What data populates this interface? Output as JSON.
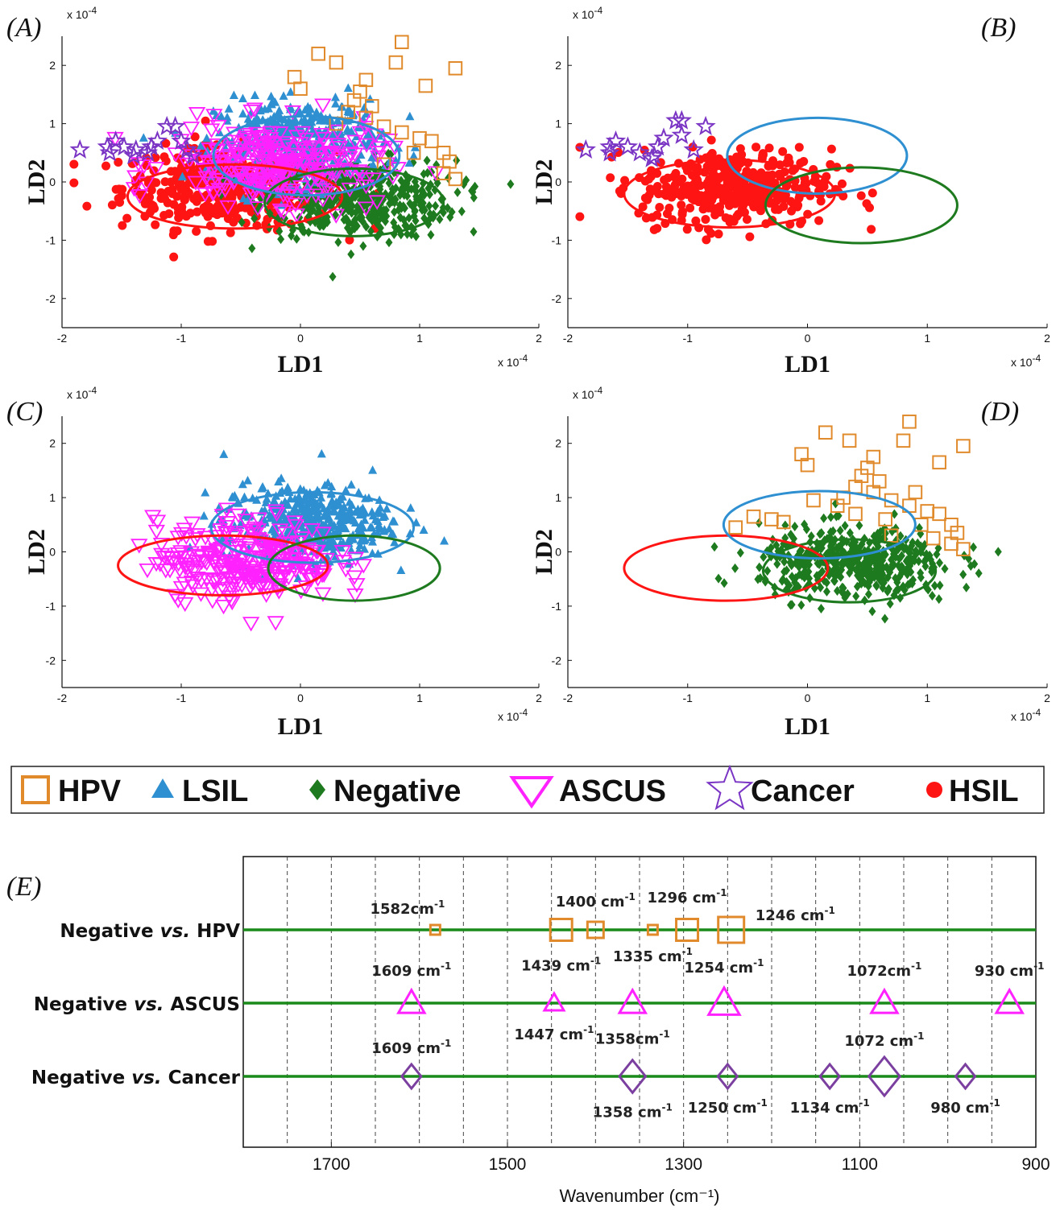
{
  "figure": {
    "colors": {
      "HPV": "#e08a2c",
      "LSIL": "#2e8fd1",
      "Negative": "#1e7a1e",
      "ASCUS": "#ff22ff",
      "Cancer": "#7b35c4",
      "HSIL": "#ff1414",
      "CancerDiamond": "#7b3fa0",
      "ELine": "#1a8a1a"
    },
    "legend": [
      {
        "label": "HPV",
        "marker": "square-open",
        "color_key": "HPV"
      },
      {
        "label": "LSIL",
        "marker": "triangle-filled",
        "color_key": "LSIL"
      },
      {
        "label": "Negative",
        "marker": "diamond-filled",
        "color_key": "Negative"
      },
      {
        "label": "ASCUS",
        "marker": "triangle-down-open",
        "color_key": "ASCUS"
      },
      {
        "label": "Cancer",
        "marker": "star-open",
        "color_key": "Cancer"
      },
      {
        "label": "HSIL",
        "marker": "circle-filled",
        "color_key": "HSIL"
      }
    ]
  },
  "chart_data": [
    {
      "type": "scatter",
      "panel": "(A)",
      "xlabel": "LD1",
      "ylabel": "LD2",
      "x_scale_label": "x 10",
      "x_scale_exp": "-4",
      "y_scale_label": "x 10",
      "y_scale_exp": "-4",
      "xlim": [
        -2,
        2
      ],
      "ylim": [
        -2.5,
        2.5
      ],
      "xticks": [
        "-2",
        "-1",
        "0",
        "1",
        "2"
      ],
      "yticks": [
        "-2",
        "-1",
        "0",
        "1",
        "2"
      ],
      "series": [
        {
          "name": "HSIL",
          "center": [
            -0.6,
            -0.1
          ],
          "spread": [
            0.45,
            0.35
          ],
          "count": 420,
          "ellipse": {
            "cx": -0.55,
            "cy": -0.25,
            "rx": 0.9,
            "ry": 0.55
          }
        },
        {
          "name": "Negative",
          "center": [
            0.5,
            -0.3
          ],
          "spread": [
            0.4,
            0.33
          ],
          "count": 430,
          "ellipse": {
            "cx": 0.45,
            "cy": -0.35,
            "rx": 0.75,
            "ry": 0.58
          }
        },
        {
          "name": "LSIL",
          "center": [
            0.0,
            0.7
          ],
          "spread": [
            0.35,
            0.35
          ],
          "count": 380,
          "ellipse": {
            "cx": 0.05,
            "cy": 0.45,
            "rx": 0.78,
            "ry": 0.68
          }
        },
        {
          "name": "ASCUS",
          "center": [
            -0.2,
            0.3
          ],
          "spread": [
            0.45,
            0.35
          ],
          "count": 260,
          "ellipse": null
        },
        {
          "name": "Cancer",
          "points": [
            [
              -1.85,
              0.55
            ],
            [
              -1.62,
              0.6
            ],
            [
              -1.55,
              0.7
            ],
            [
              -1.48,
              0.6
            ],
            [
              -1.38,
              0.55
            ],
            [
              -1.28,
              0.5
            ],
            [
              -1.25,
              0.6
            ],
            [
              -1.2,
              0.7
            ],
            [
              -1.12,
              0.95
            ],
            [
              -1.05,
              0.95
            ],
            [
              -1.0,
              0.7
            ],
            [
              -0.95,
              0.55
            ],
            [
              -0.9,
              0.45
            ],
            [
              -1.6,
              0.5
            ],
            [
              -1.4,
              0.45
            ]
          ],
          "ellipse": null
        },
        {
          "name": "HPV",
          "points": [
            [
              0.85,
              2.4
            ],
            [
              0.15,
              2.2
            ],
            [
              0.3,
              2.05
            ],
            [
              0.8,
              2.05
            ],
            [
              1.3,
              1.95
            ],
            [
              -0.05,
              1.8
            ],
            [
              0.55,
              1.75
            ],
            [
              1.05,
              1.65
            ],
            [
              0.0,
              1.6
            ],
            [
              0.5,
              1.55
            ],
            [
              0.45,
              1.4
            ],
            [
              0.6,
              1.3
            ],
            [
              0.4,
              1.2
            ],
            [
              0.55,
              1.1
            ],
            [
              0.7,
              0.95
            ],
            [
              0.85,
              0.85
            ],
            [
              1.0,
              0.75
            ],
            [
              1.1,
              0.7
            ],
            [
              0.95,
              0.5
            ],
            [
              1.2,
              0.5
            ],
            [
              1.25,
              0.35
            ],
            [
              1.2,
              0.15
            ],
            [
              1.3,
              0.05
            ],
            [
              0.7,
              0.3
            ],
            [
              0.3,
              1.0
            ]
          ],
          "ellipse": null
        }
      ]
    },
    {
      "type": "scatter",
      "panel": "(B)",
      "xlabel": "LD1",
      "ylabel": "LD2",
      "x_scale_label": "x 10",
      "x_scale_exp": "-4",
      "y_scale_label": "x 10",
      "y_scale_exp": "-4",
      "xlim": [
        -2,
        2
      ],
      "ylim": [
        -2.5,
        2.5
      ],
      "xticks": [
        "-2",
        "-1",
        "0",
        "1",
        "2"
      ],
      "yticks": [
        "-2",
        "-1",
        "0",
        "1",
        "2"
      ],
      "series": [
        {
          "name": "HSIL",
          "center": [
            -0.6,
            -0.1
          ],
          "spread": [
            0.4,
            0.33
          ],
          "count": 400,
          "ellipse": {
            "cx": -0.65,
            "cy": -0.2,
            "rx": 0.88,
            "ry": 0.58
          }
        },
        {
          "name": "LSIL",
          "center": null,
          "count": 0,
          "ellipse": {
            "cx": 0.08,
            "cy": 0.45,
            "rx": 0.75,
            "ry": 0.65
          }
        },
        {
          "name": "Negative",
          "center": null,
          "count": 0,
          "ellipse": {
            "cx": 0.45,
            "cy": -0.4,
            "rx": 0.8,
            "ry": 0.65
          }
        },
        {
          "name": "Cancer",
          "points": [
            [
              -1.85,
              0.55
            ],
            [
              -1.65,
              0.6
            ],
            [
              -1.6,
              0.7
            ],
            [
              -1.5,
              0.6
            ],
            [
              -1.4,
              0.5
            ],
            [
              -1.28,
              0.45
            ],
            [
              -1.25,
              0.6
            ],
            [
              -1.2,
              0.75
            ],
            [
              -1.1,
              1.05
            ],
            [
              -1.05,
              1.05
            ],
            [
              -1.05,
              0.8
            ],
            [
              -0.95,
              0.55
            ],
            [
              -0.85,
              0.95
            ],
            [
              -1.65,
              0.5
            ],
            [
              -1.3,
              0.4
            ]
          ],
          "ellipse": null
        }
      ]
    },
    {
      "type": "scatter",
      "panel": "(C)",
      "xlabel": "LD1",
      "ylabel": "LD2",
      "x_scale_label": "x 10",
      "x_scale_exp": "-4",
      "y_scale_label": "x 10",
      "y_scale_exp": "-4",
      "xlim": [
        -2,
        2
      ],
      "ylim": [
        -2.5,
        2.5
      ],
      "xticks": [
        "-2",
        "-1",
        "0",
        "1",
        "2"
      ],
      "yticks": [
        "-2",
        "-1",
        "0",
        "1",
        "2"
      ],
      "series": [
        {
          "name": "ASCUS",
          "center": [
            -0.45,
            -0.15
          ],
          "spread": [
            0.38,
            0.38
          ],
          "count": 260,
          "ellipse": null
        },
        {
          "name": "LSIL",
          "center": [
            0.05,
            0.55
          ],
          "spread": [
            0.35,
            0.35
          ],
          "count": 420,
          "ellipse": {
            "cx": 0.1,
            "cy": 0.45,
            "rx": 0.85,
            "ry": 0.65
          }
        },
        {
          "name": "HSIL",
          "center": null,
          "count": 0,
          "ellipse": {
            "cx": -0.65,
            "cy": -0.25,
            "rx": 0.88,
            "ry": 0.55
          }
        },
        {
          "name": "Negative",
          "center": null,
          "count": 0,
          "ellipse": {
            "cx": 0.45,
            "cy": -0.3,
            "rx": 0.72,
            "ry": 0.6
          }
        }
      ]
    },
    {
      "type": "scatter",
      "panel": "(D)",
      "xlabel": "LD1",
      "ylabel": "LD2",
      "x_scale_label": "x 10",
      "x_scale_exp": "-4",
      "y_scale_label": "x 10",
      "y_scale_exp": "-4",
      "xlim": [
        -2,
        2
      ],
      "ylim": [
        -2.5,
        2.5
      ],
      "xticks": [
        "-2",
        "-1",
        "0",
        "1",
        "2"
      ],
      "yticks": [
        "-2",
        "-1",
        "0",
        "1",
        "2"
      ],
      "series": [
        {
          "name": "Negative",
          "center": [
            0.4,
            -0.2
          ],
          "spread": [
            0.4,
            0.33
          ],
          "count": 460,
          "ellipse": {
            "cx": 0.35,
            "cy": -0.35,
            "rx": 0.72,
            "ry": 0.58
          }
        },
        {
          "name": "HSIL",
          "center": null,
          "count": 0,
          "ellipse": {
            "cx": -0.68,
            "cy": -0.3,
            "rx": 0.85,
            "ry": 0.6
          }
        },
        {
          "name": "LSIL",
          "center": null,
          "count": 0,
          "ellipse": {
            "cx": 0.1,
            "cy": 0.5,
            "rx": 0.8,
            "ry": 0.62
          }
        },
        {
          "name": "HPV",
          "points": [
            [
              0.85,
              2.4
            ],
            [
              0.15,
              2.2
            ],
            [
              0.35,
              2.05
            ],
            [
              0.8,
              2.05
            ],
            [
              1.3,
              1.95
            ],
            [
              -0.05,
              1.8
            ],
            [
              0.55,
              1.75
            ],
            [
              1.1,
              1.65
            ],
            [
              0.0,
              1.6
            ],
            [
              0.5,
              1.55
            ],
            [
              0.45,
              1.4
            ],
            [
              0.6,
              1.3
            ],
            [
              0.4,
              1.2
            ],
            [
              0.55,
              1.1
            ],
            [
              0.7,
              0.95
            ],
            [
              0.85,
              0.85
            ],
            [
              1.0,
              0.75
            ],
            [
              1.1,
              0.7
            ],
            [
              0.95,
              0.5
            ],
            [
              1.2,
              0.5
            ],
            [
              1.25,
              0.35
            ],
            [
              1.2,
              0.15
            ],
            [
              1.3,
              0.05
            ],
            [
              0.7,
              0.3
            ],
            [
              0.3,
              1.0
            ],
            [
              0.05,
              0.95
            ],
            [
              -0.3,
              0.6
            ],
            [
              -0.6,
              0.45
            ],
            [
              -0.45,
              0.65
            ],
            [
              0.25,
              0.85
            ],
            [
              0.65,
              0.6
            ],
            [
              0.4,
              0.7
            ],
            [
              1.05,
              0.25
            ],
            [
              -0.2,
              0.55
            ],
            [
              0.9,
              1.1
            ]
          ],
          "ellipse": null
        }
      ]
    },
    {
      "type": "scatter",
      "panel": "(E)",
      "xlabel": "Wavenumber (cm⁻¹)",
      "xlim": [
        1800,
        900
      ],
      "x_reversed": true,
      "xticks": [
        "1700",
        "1500",
        "1300",
        "1100",
        "900"
      ],
      "grid": "vertical dashed every 50",
      "rows": [
        {
          "label_pre": "Negative ",
          "label_vs": "vs.",
          "label_post": " HPV",
          "marker": "square-open",
          "color_key": "HPV",
          "points": [
            {
              "x": 1582,
              "size": "small",
              "label": "1582cm-1",
              "label_pos": "above-left"
            },
            {
              "x": 1439,
              "size": "large",
              "label": "1439 cm-1",
              "label_pos": "below"
            },
            {
              "x": 1400,
              "size": "medium",
              "label": "1400 cm-1",
              "label_pos": "above"
            },
            {
              "x": 1335,
              "size": "small",
              "label": "1335 cm-1",
              "label_pos": "below"
            },
            {
              "x": 1296,
              "size": "large",
              "label": "1296 cm-1",
              "label_pos": "above"
            },
            {
              "x": 1246,
              "size": "xlarge",
              "label": "1246 cm-1",
              "label_pos": "above-right"
            }
          ]
        },
        {
          "label_pre": "Negative ",
          "label_vs": "vs.",
          "label_post": " ASCUS",
          "marker": "triangle-open",
          "color_key": "ASCUS",
          "points": [
            {
              "x": 1609,
              "size": "large",
              "label": "1609 cm-1",
              "label_pos": "above"
            },
            {
              "x": 1447,
              "size": "medium",
              "label": "1447 cm-1",
              "label_pos": "below"
            },
            {
              "x": 1358,
              "size": "large",
              "label": "1358cm-1",
              "label_pos": "below"
            },
            {
              "x": 1254,
              "size": "xlarge",
              "label": "1254 cm-1",
              "label_pos": "above"
            },
            {
              "x": 1072,
              "size": "large",
              "label": "1072cm-1",
              "label_pos": "above"
            },
            {
              "x": 930,
              "size": "large",
              "label": "930 cm-1",
              "label_pos": "above"
            }
          ]
        },
        {
          "label_pre": "Negative ",
          "label_vs": "vs.",
          "label_post": " Cancer",
          "marker": "diamond-open",
          "color_key": "CancerDiamond",
          "points": [
            {
              "x": 1609,
              "size": "medium",
              "label": "1609 cm-1",
              "label_pos": "above"
            },
            {
              "x": 1358,
              "size": "large",
              "label": "1358 cm-1",
              "label_pos": "below"
            },
            {
              "x": 1250,
              "size": "medium",
              "label": "1250 cm-1",
              "label_pos": "below"
            },
            {
              "x": 1134,
              "size": "medium",
              "label": "1134 cm-1",
              "label_pos": "below"
            },
            {
              "x": 1072,
              "size": "xlarge",
              "label": "1072 cm-1",
              "label_pos": "above"
            },
            {
              "x": 980,
              "size": "medium",
              "label": "980 cm-1",
              "label_pos": "below"
            }
          ]
        }
      ]
    }
  ]
}
